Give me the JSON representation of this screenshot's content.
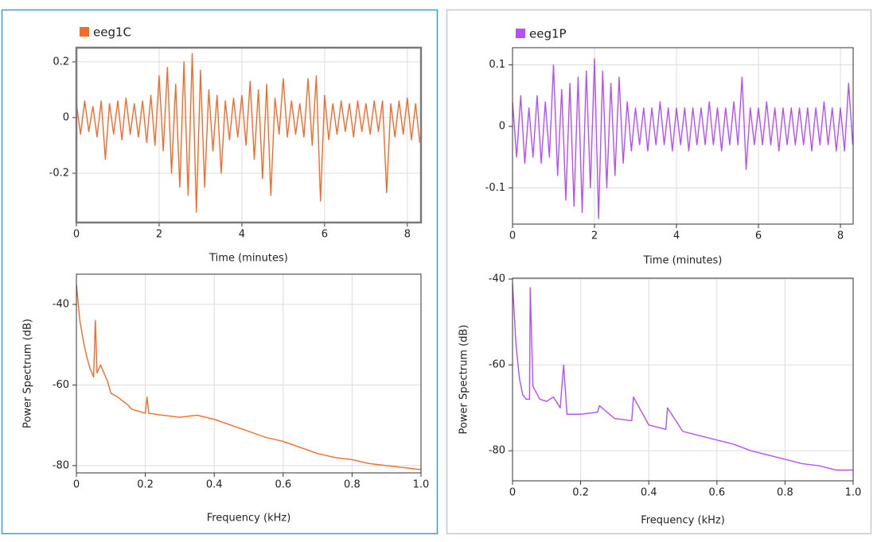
{
  "chart_data": [
    {
      "type": "line",
      "x_label": "Time (minutes)",
      "x": [
        0,
        0.1,
        0.2,
        0.3,
        0.4,
        0.5,
        0.6,
        0.7,
        0.8,
        0.9,
        1,
        1.1,
        1.2,
        1.3,
        1.4,
        1.5,
        1.6,
        1.7,
        1.8,
        1.9,
        2,
        2.1,
        2.2,
        2.3,
        2.4,
        2.5,
        2.6,
        2.7,
        2.8,
        2.9,
        3,
        3.1,
        3.2,
        3.3,
        3.4,
        3.5,
        3.6,
        3.7,
        3.8,
        3.9,
        4,
        4.1,
        4.2,
        4.3,
        4.4,
        4.5,
        4.6,
        4.7,
        4.8,
        4.9,
        5,
        5.1,
        5.2,
        5.3,
        5.4,
        5.5,
        5.6,
        5.7,
        5.8,
        5.9,
        6,
        6.1,
        6.2,
        6.3,
        6.4,
        6.5,
        6.6,
        6.7,
        6.8,
        6.9,
        7,
        7.1,
        7.2,
        7.3,
        7.4,
        7.5,
        7.6,
        7.7,
        7.8,
        7.9,
        8,
        8.1,
        8.2,
        8.3
      ],
      "series": [
        {
          "name": "eeg1C",
          "color": "#f26b2a",
          "values": [
            0.05,
            -0.06,
            0.06,
            -0.05,
            0.04,
            -0.07,
            0.06,
            -0.15,
            0.05,
            -0.06,
            0.06,
            -0.08,
            0.07,
            -0.06,
            0.05,
            -0.07,
            0.06,
            -0.09,
            0.08,
            -0.1,
            0.15,
            -0.12,
            0.18,
            -0.2,
            0.12,
            -0.25,
            0.2,
            -0.28,
            0.23,
            -0.34,
            0.17,
            -0.25,
            0.1,
            -0.12,
            0.08,
            -0.2,
            0.06,
            -0.08,
            0.07,
            -0.07,
            0.08,
            -0.1,
            0.13,
            -0.15,
            0.1,
            -0.22,
            0.12,
            -0.28,
            0.07,
            -0.06,
            0.14,
            -0.07,
            0.06,
            -0.06,
            0.05,
            -0.07,
            0.14,
            -0.1,
            0.15,
            -0.3,
            0.08,
            -0.08,
            0.05,
            -0.06,
            0.06,
            -0.05,
            0.05,
            -0.07,
            0.06,
            -0.05,
            0.05,
            -0.06,
            0.06,
            -0.05,
            0.06,
            -0.27,
            0.05,
            -0.07,
            0.06,
            -0.06,
            0.07,
            -0.08,
            0.05,
            -0.09
          ]
        }
      ],
      "xlim": [
        0,
        8.33
      ],
      "xticks": [
        0,
        2,
        4,
        6,
        8
      ],
      "ylim": [
        -0.377,
        0.251
      ],
      "yticks": [
        0.2,
        0,
        -0.2
      ],
      "grid": true
    },
    {
      "type": "line",
      "x_label": "Frequency (kHz)",
      "y_label": "Power Spectrum (dB)",
      "color": "#f26b2a",
      "x": [
        0,
        0.01,
        0.02,
        0.03,
        0.04,
        0.05,
        0.055,
        0.06,
        0.07,
        0.08,
        0.09,
        0.1,
        0.12,
        0.15,
        0.16,
        0.18,
        0.2,
        0.205,
        0.21,
        0.25,
        0.3,
        0.35,
        0.4,
        0.45,
        0.5,
        0.55,
        0.6,
        0.65,
        0.7,
        0.75,
        0.8,
        0.85,
        0.9,
        0.95,
        1.0
      ],
      "values": [
        -35,
        -44,
        -49,
        -53,
        -56,
        -58,
        -44,
        -57,
        -55,
        -57,
        -59,
        -62,
        -63,
        -65,
        -66,
        -66.5,
        -67,
        -63,
        -67,
        -67.5,
        -68,
        -67.5,
        -68.5,
        -70,
        -71.5,
        -73,
        -74,
        -75.5,
        -77,
        -78,
        -78.5,
        -79.5,
        -80,
        -80.5,
        -81
      ],
      "xlim": [
        0,
        1
      ],
      "xticks": [
        0,
        0.2,
        0.4,
        0.6,
        0.8,
        {
          "value": 1,
          "label": "1.0"
        }
      ],
      "ylim": [
        -81.8,
        -32.5
      ],
      "yticks": [
        -40,
        -60,
        -80
      ],
      "grid": true
    },
    {
      "type": "line",
      "x_label": "Time (minutes)",
      "x": [
        0,
        0.1,
        0.2,
        0.3,
        0.4,
        0.5,
        0.6,
        0.7,
        0.8,
        0.9,
        1,
        1.1,
        1.2,
        1.3,
        1.4,
        1.5,
        1.6,
        1.7,
        1.8,
        1.9,
        2,
        2.1,
        2.2,
        2.3,
        2.4,
        2.5,
        2.6,
        2.7,
        2.8,
        2.9,
        3,
        3.1,
        3.2,
        3.3,
        3.4,
        3.5,
        3.6,
        3.7,
        3.8,
        3.9,
        4,
        4.1,
        4.2,
        4.3,
        4.4,
        4.5,
        4.6,
        4.7,
        4.8,
        4.9,
        5,
        5.1,
        5.2,
        5.3,
        5.4,
        5.5,
        5.6,
        5.7,
        5.8,
        5.9,
        6,
        6.1,
        6.2,
        6.3,
        6.4,
        6.5,
        6.6,
        6.7,
        6.8,
        6.9,
        7,
        7.1,
        7.2,
        7.3,
        7.4,
        7.5,
        7.6,
        7.7,
        7.8,
        7.9,
        8,
        8.1,
        8.2,
        8.3
      ],
      "series": [
        {
          "name": "eeg1P",
          "color": "#b64ff5",
          "values": [
            0.04,
            -0.05,
            0.05,
            -0.06,
            0.03,
            -0.05,
            0.05,
            -0.06,
            0.04,
            -0.05,
            0.1,
            -0.08,
            0.06,
            -0.12,
            0.07,
            -0.13,
            0.08,
            -0.14,
            0.09,
            -0.1,
            0.11,
            -0.15,
            0.09,
            -0.1,
            0.07,
            -0.08,
            0.08,
            -0.06,
            0.04,
            -0.04,
            0.03,
            -0.03,
            0.03,
            -0.04,
            0.03,
            -0.03,
            0.04,
            -0.03,
            0.03,
            -0.04,
            0.03,
            -0.03,
            0.03,
            -0.04,
            0.03,
            -0.03,
            0.03,
            -0.03,
            0.04,
            -0.03,
            0.03,
            -0.04,
            0.03,
            -0.03,
            0.04,
            -0.03,
            0.08,
            -0.07,
            0.03,
            -0.03,
            0.03,
            -0.03,
            0.04,
            -0.03,
            0.03,
            -0.04,
            0.03,
            -0.03,
            0.03,
            -0.03,
            0.03,
            -0.03,
            0.03,
            -0.04,
            0.03,
            -0.03,
            0.04,
            -0.03,
            0.03,
            -0.04,
            0.03,
            -0.04,
            0.07,
            -0.03
          ]
        }
      ],
      "xlim": [
        0,
        8.31
      ],
      "xticks": [
        0,
        2,
        4,
        6,
        8
      ],
      "ylim": [
        -0.159,
        0.128
      ],
      "yticks": [
        0.1,
        0,
        -0.1
      ],
      "grid": true
    },
    {
      "type": "line",
      "x_label": "Frequency (kHz)",
      "y_label": "Power Spectrum (dB)",
      "color": "#b64ff5",
      "x": [
        0,
        0.01,
        0.02,
        0.03,
        0.04,
        0.05,
        0.052,
        0.06,
        0.08,
        0.1,
        0.12,
        0.14,
        0.15,
        0.16,
        0.2,
        0.25,
        0.255,
        0.3,
        0.35,
        0.355,
        0.4,
        0.45,
        0.455,
        0.5,
        0.55,
        0.6,
        0.65,
        0.7,
        0.75,
        0.8,
        0.85,
        0.9,
        0.95,
        1.0
      ],
      "values": [
        -41,
        -55,
        -63,
        -67,
        -68,
        -68,
        -42,
        -65,
        -68,
        -68.5,
        -67.5,
        -70,
        -60,
        -71.5,
        -71.5,
        -71,
        -69.5,
        -72.5,
        -73,
        -67.5,
        -74,
        -75,
        -70,
        -75.5,
        -76.5,
        -77.5,
        -78.5,
        -80,
        -81,
        -82,
        -83,
        -83.5,
        -84.5,
        -84.5
      ],
      "xlim": [
        0,
        1
      ],
      "xticks": [
        0,
        0.2,
        0.4,
        0.6,
        0.8,
        {
          "value": 1,
          "label": "1.0"
        }
      ],
      "ylim": [
        -87,
        -39.8
      ],
      "yticks": [
        -40,
        -60,
        -80
      ],
      "grid": true
    }
  ]
}
